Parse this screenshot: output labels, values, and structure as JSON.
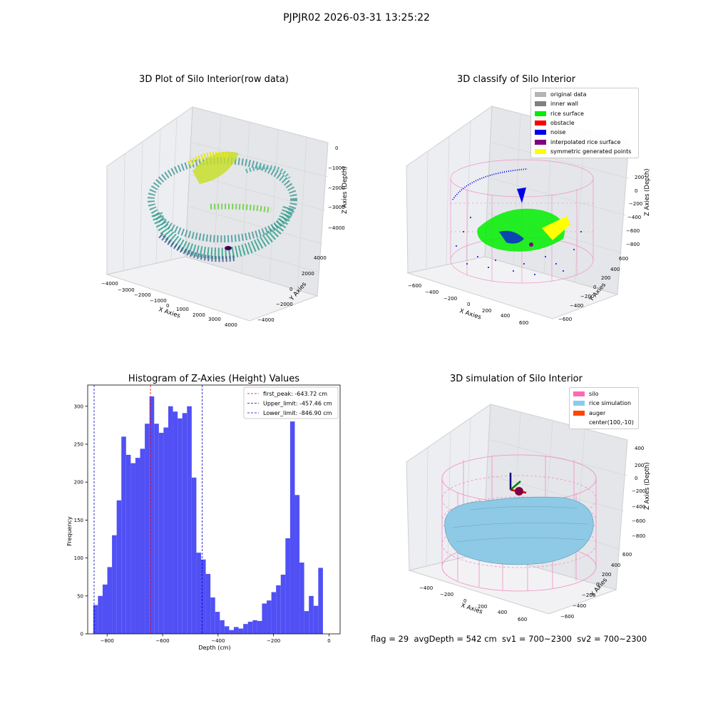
{
  "figure": {
    "suptitle": "PJPJR02 2026-03-31 13:25:22",
    "footer": "flag = 29  avgDepth = 542 cm  sv1 = 700~2300  sv2 = 700~2300"
  },
  "colors": {
    "hist_bar": "#5050f5",
    "first_peak": "#ff0000",
    "limits": "#0000cc",
    "silo_wire": "#f28cc0",
    "rice_fill": "#8ecae6",
    "noise": "#0000ee",
    "rice_surface": "#00ee00",
    "symmetric": "#ffff00"
  },
  "panels": {
    "raw": {
      "title": "3D Plot of Silo Interior(row data)",
      "xlabel": "X Axies",
      "ylabel": "Y Axies",
      "zlabel": "Z Axies (Depth)",
      "xticks": [
        "−4000",
        "−3000",
        "−2000",
        "−1000",
        "0",
        "1000",
        "2000",
        "3000",
        "4000"
      ],
      "yticks": [
        "4000",
        "2000",
        "0",
        "−2000",
        "−4000"
      ],
      "zticks": [
        "0",
        "−1000",
        "−2000",
        "−3000",
        "−4000"
      ]
    },
    "classify": {
      "title": "3D classify of Silo Interior",
      "xlabel": "X Axies",
      "ylabel": "Y Axies",
      "zlabel": "Z Axies (Depth)",
      "xticks": [
        "−600",
        "−400",
        "−200",
        "0",
        "200",
        "400",
        "600"
      ],
      "yticks": [
        "600",
        "400",
        "200",
        "0",
        "−200",
        "−400",
        "−600"
      ],
      "zticks": [
        "200",
        "0",
        "−200",
        "−400",
        "−600",
        "−800"
      ],
      "legend": [
        {
          "label": "original data",
          "color": "#b4b4b4"
        },
        {
          "label": "inner wall",
          "color": "#808080"
        },
        {
          "label": "rice surface",
          "color": "#00ee00"
        },
        {
          "label": "obstacle",
          "color": "#ff0000"
        },
        {
          "label": "noise",
          "color": "#0000ee"
        },
        {
          "label": "interpolated rice surface",
          "color": "#800080"
        },
        {
          "label": "symmetric generated points",
          "color": "#ffff00"
        }
      ]
    },
    "simulation": {
      "title": "3D simulation of Silo Interior",
      "xlabel": "X Axies",
      "ylabel": "Y Axies",
      "zlabel": "Z Axies (Depth)",
      "xticks": [
        "−400",
        "−200",
        "0",
        "200",
        "400",
        "600"
      ],
      "yticks": [
        "600",
        "400",
        "200",
        "0",
        "−200",
        "−400",
        "−600"
      ],
      "zticks": [
        "400",
        "200",
        "0",
        "−200",
        "−400",
        "−600",
        "−800"
      ],
      "legend": [
        {
          "label": "silo",
          "color": "#ff69b4"
        },
        {
          "label": "rice simulation",
          "color": "#87ceeb"
        },
        {
          "label": "auger",
          "color": "#ff4500"
        },
        {
          "label": "center(100,-10)",
          "color": ""
        }
      ]
    }
  },
  "chart_data": [
    {
      "type": "bar",
      "title": "Histogram of Z-Axies (Height) Values",
      "xlabel": "Depth (cm)",
      "ylabel": "Frequency",
      "xlim": [
        -870,
        40
      ],
      "ylim": [
        0,
        328
      ],
      "xticks": [
        -800,
        -600,
        -400,
        -200,
        0
      ],
      "yticks": [
        0,
        50,
        100,
        150,
        200,
        250,
        300
      ],
      "bin_start": -850,
      "bin_width": 16.9,
      "values": [
        38,
        50,
        65,
        88,
        130,
        176,
        260,
        236,
        225,
        232,
        244,
        277,
        313,
        277,
        265,
        272,
        300,
        293,
        284,
        291,
        300,
        206,
        107,
        98,
        79,
        48,
        29,
        18,
        10,
        5,
        9,
        7,
        13,
        16,
        18,
        17,
        40,
        44,
        55,
        64,
        78,
        126,
        280,
        183,
        94,
        30,
        50,
        37,
        87
      ],
      "vlines": [
        {
          "name": "first_peak: -643.72 cm",
          "x": -643.72,
          "style": "red"
        },
        {
          "name": "Upper_limit: -457.46 cm",
          "x": -457.46,
          "style": "blue"
        },
        {
          "name": "Lower_limit: -846.90 cm",
          "x": -846.9,
          "style": "blue"
        }
      ],
      "legend_position": "upper right",
      "grid": false
    }
  ]
}
